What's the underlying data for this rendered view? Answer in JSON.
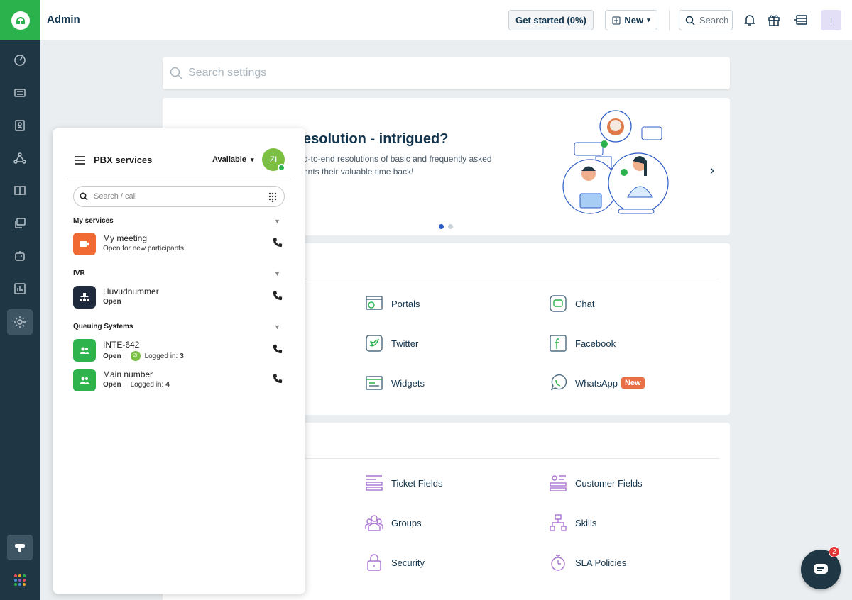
{
  "header": {
    "title": "Admin",
    "get_started": "Get started (0%)",
    "new_label": "New",
    "search_label": "Search",
    "avatar_initial": "I"
  },
  "settings_search": {
    "placeholder": "Search settings"
  },
  "banner": {
    "title": "esolution - intrigued?",
    "description_line1": "d-to-end resolutions of basic and frequently asked",
    "description_line2": "ents their valuable time back!",
    "slides": 2,
    "active_slide": 1
  },
  "channels": [
    {
      "label": "Portals",
      "icon": "portal-icon"
    },
    {
      "label": "Chat",
      "icon": "chat-icon"
    },
    {
      "label": "Twitter",
      "icon": "twitter-icon"
    },
    {
      "label": "Facebook",
      "icon": "facebook-icon"
    },
    {
      "label": "Widgets",
      "icon": "widget-icon"
    },
    {
      "label": "WhatsApp",
      "icon": "whatsapp-icon",
      "badge": "New"
    }
  ],
  "workflows": [
    {
      "label": "Ticket Fields",
      "icon": "ticket-fields-icon"
    },
    {
      "label": "Customer Fields",
      "icon": "customer-fields-icon"
    },
    {
      "label": "Groups",
      "icon": "groups-icon"
    },
    {
      "label": "Skills",
      "icon": "skills-icon"
    },
    {
      "label": "Security",
      "icon": "lock-icon"
    },
    {
      "label": "SLA Policies",
      "icon": "stopwatch-icon"
    }
  ],
  "pbx": {
    "title": "PBX services",
    "status": "Available",
    "user_initials": "ZI",
    "search_placeholder": "Search / call",
    "sections": {
      "my_services": "My services",
      "ivr": "IVR",
      "queuing": "Queuing Systems"
    },
    "services": {
      "meeting": {
        "name": "My meeting",
        "sub": "Open for new participants"
      },
      "huvud": {
        "name": "Huvudnummer",
        "sub": "Open"
      },
      "inte": {
        "name": "INTE-642",
        "status": "Open",
        "logged_label": "Logged in:",
        "logged": "3"
      },
      "main": {
        "name": "Main number",
        "status": "Open",
        "logged_label": "Logged in:",
        "logged": "4"
      }
    }
  },
  "chat_fab": {
    "count": "2"
  },
  "colors": {
    "brand_green": "#2bb24c",
    "nav_dark": "#1f3645",
    "meeting_orange": "#f26a33",
    "ivr_navy": "#1f2b3d",
    "queue_green": "#2fb34d",
    "badge_new": "#e86f45"
  }
}
